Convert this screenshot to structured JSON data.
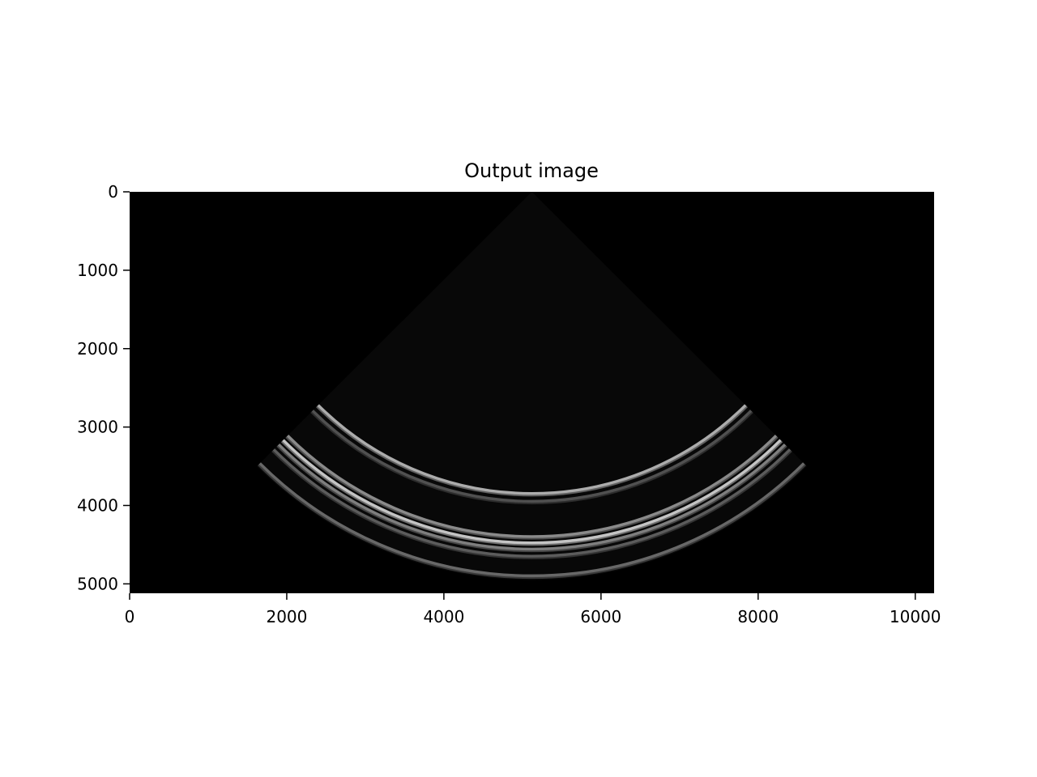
{
  "chart_data": {
    "type": "heatmap",
    "title": "Output image",
    "xlabel": "",
    "ylabel": "",
    "colormap": "gray",
    "xlim": [
      0,
      10240
    ],
    "ylim": [
      5120,
      0
    ],
    "xticks": [
      0,
      2000,
      4000,
      6000,
      8000,
      10000
    ],
    "yticks": [
      0,
      1000,
      2000,
      3000,
      4000,
      5000
    ],
    "xtick_labels": [
      "0",
      "2000",
      "4000",
      "6000",
      "8000",
      "10000"
    ],
    "ytick_labels": [
      "0",
      "1000",
      "2000",
      "3000",
      "4000",
      "5000"
    ],
    "image": {
      "description_type": "ultrasound sector scan",
      "apex": [
        5120,
        0
      ],
      "half_angle_deg": 45,
      "max_depth": 4950,
      "bright_arcs": [
        {
          "radius": 3850,
          "intensity": 0.75
        },
        {
          "radius": 3950,
          "intensity": 0.35
        },
        {
          "radius": 4400,
          "intensity": 0.6
        },
        {
          "radius": 4480,
          "intensity": 0.85
        },
        {
          "radius": 4560,
          "intensity": 0.55
        },
        {
          "radius": 4650,
          "intensity": 0.4
        },
        {
          "radius": 4900,
          "intensity": 0.45
        }
      ]
    },
    "colors": {
      "background": "#000000",
      "figure": "#ffffff"
    }
  }
}
